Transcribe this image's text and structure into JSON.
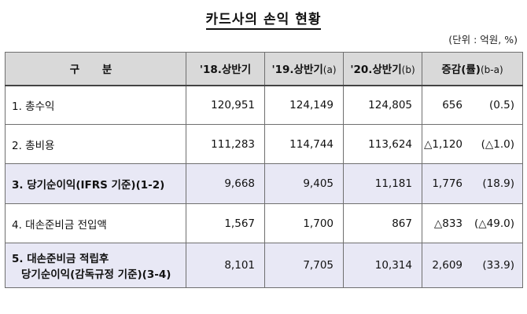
{
  "title": "카드사의 손익 현황",
  "unit": "(단위 : 억원, %)",
  "headers": {
    "category": "구 분",
    "h18_main": "'18.상반기",
    "h19_main": "'19.상반기",
    "h19_sub": "(a)",
    "h20_main": "'20.상반기",
    "h20_sub": "(b)",
    "diff_main": "증감(률)",
    "diff_sub": "(b-a)"
  },
  "rows": [
    {
      "label": "1. 총수익",
      "v18": "120,951",
      "v19": "124,149",
      "v20": "124,805",
      "diff": "656",
      "rate": "(0.5)"
    },
    {
      "label": "2. 총비용",
      "v18": "111,283",
      "v19": "114,744",
      "v20": "113,624",
      "diff": "△1,120",
      "rate": "(△1.0)"
    },
    {
      "label": "3. 당기순이익(IFRS 기준)(1-2)",
      "v18": "9,668",
      "v19": "9,405",
      "v20": "11,181",
      "diff": "1,776",
      "rate": "(18.9)"
    },
    {
      "label": "4. 대손준비금 전입액",
      "v18": "1,567",
      "v19": "1,700",
      "v20": "867",
      "diff": "△833",
      "rate": "(△49.0)"
    },
    {
      "label_line1": "5. 대손준비금 적립후",
      "label_line2": "당기순이익(감독규정 기준)(3-4)",
      "v18": "8,101",
      "v19": "7,705",
      "v20": "10,314",
      "diff": "2,609",
      "rate": "(33.9)"
    }
  ]
}
